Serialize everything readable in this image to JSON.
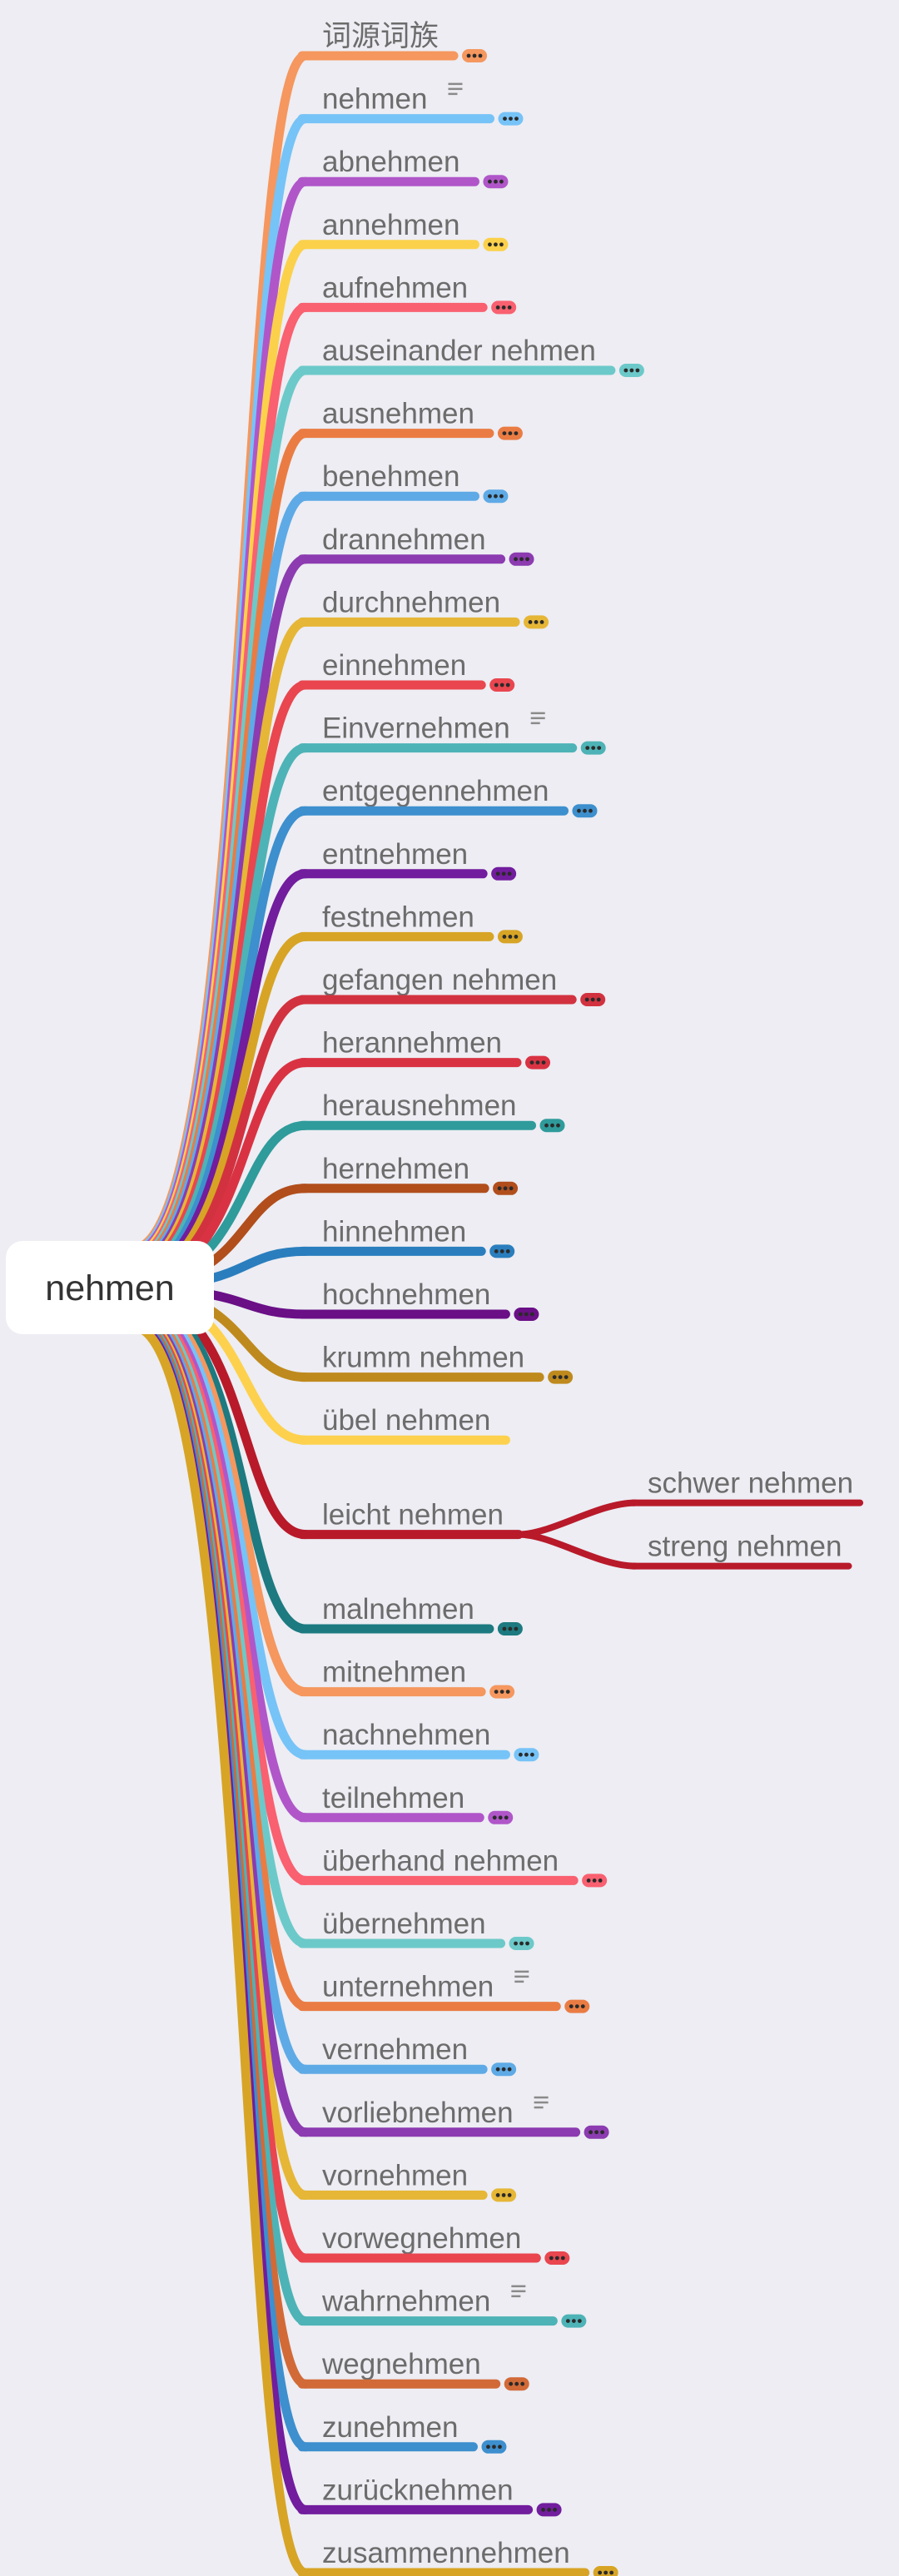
{
  "root": {
    "label": "nehmen"
  },
  "branches": [
    {
      "label": "词源词族",
      "color": "#f5975e",
      "more": true
    },
    {
      "label": "nehmen",
      "color": "#76c3f7",
      "more": true,
      "note": true
    },
    {
      "label": "abnehmen",
      "color": "#b056c9",
      "more": true
    },
    {
      "label": "annehmen",
      "color": "#fbd14b",
      "more": true
    },
    {
      "label": "aufnehmen",
      "color": "#f96070",
      "more": true
    },
    {
      "label": "auseinander nehmen",
      "color": "#6cc9c9",
      "more": true
    },
    {
      "label": "ausnehmen",
      "color": "#ea7c43",
      "more": true
    },
    {
      "label": "benehmen",
      "color": "#5eaae6",
      "more": true
    },
    {
      "label": "drannehmen",
      "color": "#8c3bb0",
      "more": true
    },
    {
      "label": "durchnehmen",
      "color": "#e6b636",
      "more": true
    },
    {
      "label": "einnehmen",
      "color": "#e9464f",
      "more": true
    },
    {
      "label": "Einvernehmen",
      "color": "#4db3b6",
      "more": true,
      "note": true
    },
    {
      "label": "entgegennehmen",
      "color": "#3d8fce",
      "more": true
    },
    {
      "label": "entnehmen",
      "color": "#721c9e",
      "more": true
    },
    {
      "label": "festnehmen",
      "color": "#d7a425",
      "more": true
    },
    {
      "label": "gefangen nehmen",
      "color": "#d2323f",
      "more": true
    },
    {
      "label": "herannehmen",
      "color": "#d93343",
      "more": true
    },
    {
      "label": "herausnehmen",
      "color": "#2f9b9b",
      "more": true
    },
    {
      "label": "hernehmen",
      "color": "#b14e1c",
      "more": true
    },
    {
      "label": "hinnehmen",
      "color": "#2a7ebe",
      "more": true
    },
    {
      "label": "hochnehmen",
      "color": "#6a0f86",
      "more": true
    },
    {
      "label": "krumm nehmen",
      "color": "#bf8a1d",
      "more": true
    },
    {
      "label": "übel nehmen",
      "color": "#fdd14d",
      "more": false
    },
    {
      "label": "leicht nehmen",
      "color": "#b81a2a",
      "more": false,
      "children": [
        {
          "label": "schwer nehmen"
        },
        {
          "label": "streng nehmen"
        }
      ]
    },
    {
      "label": "malnehmen",
      "color": "#1c7a80",
      "more": true
    },
    {
      "label": "mitnehmen",
      "color": "#f5975e",
      "more": true
    },
    {
      "label": "nachnehmen",
      "color": "#76c3f7",
      "more": true
    },
    {
      "label": "teilnehmen",
      "color": "#b056c9",
      "more": true
    },
    {
      "label": "überhand nehmen",
      "color": "#f96070",
      "more": true
    },
    {
      "label": "übernehmen",
      "color": "#6cc9c9",
      "more": true
    },
    {
      "label": "unternehmen",
      "color": "#ea7c43",
      "more": true,
      "note": true
    },
    {
      "label": "vernehmen",
      "color": "#5eaae6",
      "more": true
    },
    {
      "label": "vorliebnehmen",
      "color": "#8c3bb0",
      "more": true,
      "note": true
    },
    {
      "label": "vornehmen",
      "color": "#e6b636",
      "more": true
    },
    {
      "label": "vorwegnehmen",
      "color": "#e9464f",
      "more": true
    },
    {
      "label": "wahrnehmen",
      "color": "#4db3b6",
      "more": true,
      "note": true
    },
    {
      "label": "wegnehmen",
      "color": "#d26a37",
      "more": true
    },
    {
      "label": "zunehmen",
      "color": "#3d8fce",
      "more": true
    },
    {
      "label": "zurücknehmen",
      "color": "#721c9e",
      "more": true
    },
    {
      "label": "zusammennehmen",
      "color": "#d7a425",
      "more": true
    }
  ]
}
